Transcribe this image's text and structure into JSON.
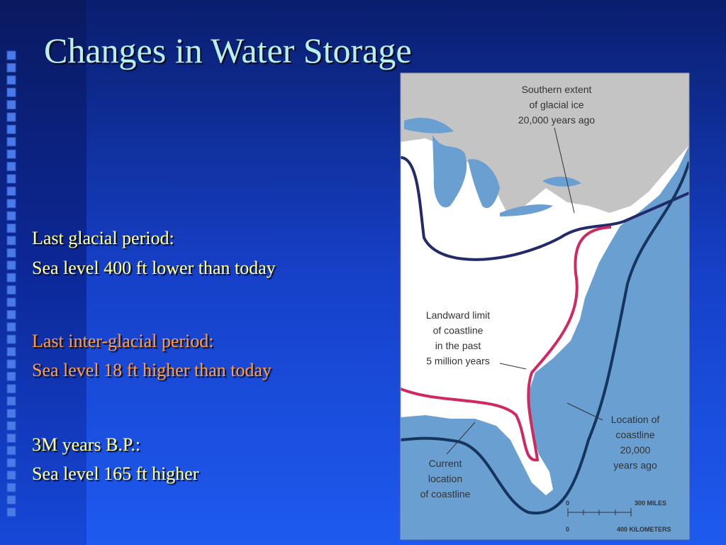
{
  "slide": {
    "title": "Changes in Water Storage",
    "points": [
      {
        "heading": "Last glacial period:",
        "detail": "Sea level 400 ft lower than today"
      },
      {
        "heading": "Last inter-glacial period:",
        "detail": "Sea level 18 ft higher than today"
      },
      {
        "heading": "3M years B.P.:",
        "detail": "Sea level 165 ft higher"
      }
    ]
  },
  "map": {
    "labels": [
      {
        "lines": [
          "Southern extent",
          "of glacial ice",
          "20,000 years ago"
        ]
      },
      {
        "lines": [
          "Landward limit",
          "of coastline",
          "in the past",
          "5 million years"
        ]
      },
      {
        "lines": [
          "Location of",
          "coastline",
          "20,000",
          "years ago"
        ]
      },
      {
        "lines": [
          "Current",
          "location",
          "of coastline"
        ]
      }
    ],
    "scale": {
      "miles_zero": "0",
      "miles": "300 MILES",
      "km_zero": "0",
      "km": "400 KILOMETERS"
    }
  }
}
